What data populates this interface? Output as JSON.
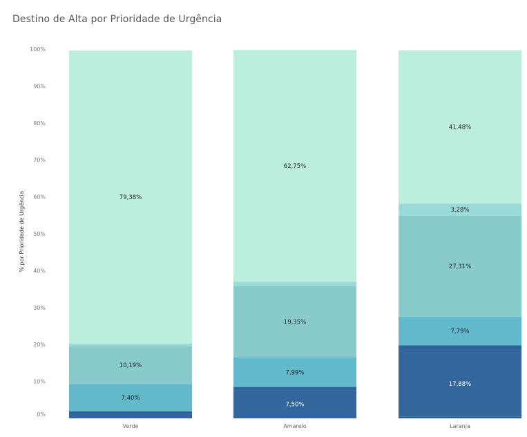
{
  "chart_data": {
    "type": "bar",
    "stacked": true,
    "title": "Destino de Alta por Prioridade de Urgência",
    "ylabel": "% por Prioridade de Urgência",
    "xlabel": "",
    "ylim": [
      0,
      100
    ],
    "y_ticks": [
      "0%",
      "10%",
      "20%",
      "30%",
      "40%",
      "50%",
      "60%",
      "70%",
      "80%",
      "90%",
      "100%"
    ],
    "grid": false,
    "legend": "none",
    "categories": [
      "Verde",
      "Amarelo",
      "Laranja"
    ],
    "segments": [
      {
        "color": "#2b5e95",
        "values": [
          0.1,
          0.1,
          0.4
        ],
        "labels": [
          "",
          "",
          ""
        ]
      },
      {
        "color": "#33669b",
        "values": [
          1.2,
          7.5,
          17.88
        ],
        "labels": [
          "",
          "7,50%",
          "17,88%"
        ]
      },
      {
        "color": "#2d639a",
        "values": [
          0.6,
          0.9,
          1.5
        ],
        "labels": [
          "",
          "",
          ""
        ]
      },
      {
        "color": "#63b9cc",
        "values": [
          7.4,
          7.99,
          7.79
        ],
        "labels": [
          "7,40%",
          "7,99%",
          "7,79%"
        ]
      },
      {
        "color": "#89cbca",
        "values": [
          10.19,
          19.35,
          27.31
        ],
        "labels": [
          "10,19%",
          "19,35%",
          "27,31%"
        ]
      },
      {
        "color": "#9adad8",
        "values": [
          0.73,
          1.16,
          3.28
        ],
        "labels": [
          "",
          "",
          "3,28%"
        ]
      },
      {
        "color": "#bbeedd",
        "values": [
          79.38,
          62.75,
          41.48
        ],
        "labels": [
          "79,38%",
          "62,75%",
          "41,48%"
        ]
      }
    ],
    "label_colors": [
      "#ffffff",
      "#ffffff",
      "#ffffff",
      "#222222",
      "#222222",
      "#222222",
      "#222222"
    ]
  }
}
